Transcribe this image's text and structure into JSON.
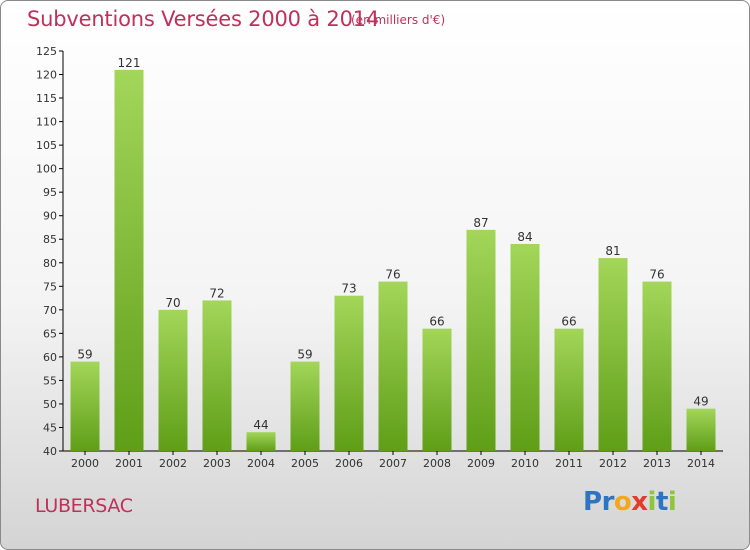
{
  "chart_data": {
    "type": "bar",
    "title": "Subventions Versées 2000 à 2014",
    "subtitle": "(en milliers d'€)",
    "categories": [
      "2000",
      "2001",
      "2002",
      "2003",
      "2004",
      "2005",
      "2006",
      "2007",
      "2008",
      "2009",
      "2010",
      "2011",
      "2012",
      "2013",
      "2014"
    ],
    "values": [
      59,
      121,
      70,
      72,
      44,
      59,
      73,
      76,
      66,
      87,
      84,
      66,
      81,
      76,
      49
    ],
    "ylim": [
      40,
      125
    ],
    "yticks": [
      40,
      45,
      50,
      55,
      60,
      65,
      70,
      75,
      80,
      85,
      90,
      95,
      100,
      105,
      110,
      115,
      120,
      125
    ],
    "grid": false,
    "bar_color_top": "#a3d65a",
    "bar_color_bottom": "#5f9e17"
  },
  "place_name": "LUBERSAC",
  "logo": {
    "letters": [
      {
        "ch": "P",
        "color": "#2e74c0"
      },
      {
        "ch": "r",
        "color": "#2e74c0"
      },
      {
        "ch": "o",
        "color": "#f2a81c"
      },
      {
        "ch": "x",
        "color": "#e23b2e"
      },
      {
        "ch": "i",
        "color": "#8cc63f"
      },
      {
        "ch": "t",
        "color": "#2e74c0"
      },
      {
        "ch": "i",
        "color": "#8cc63f"
      }
    ]
  },
  "colors": {
    "title": "#c0305a",
    "axis": "#000000"
  }
}
